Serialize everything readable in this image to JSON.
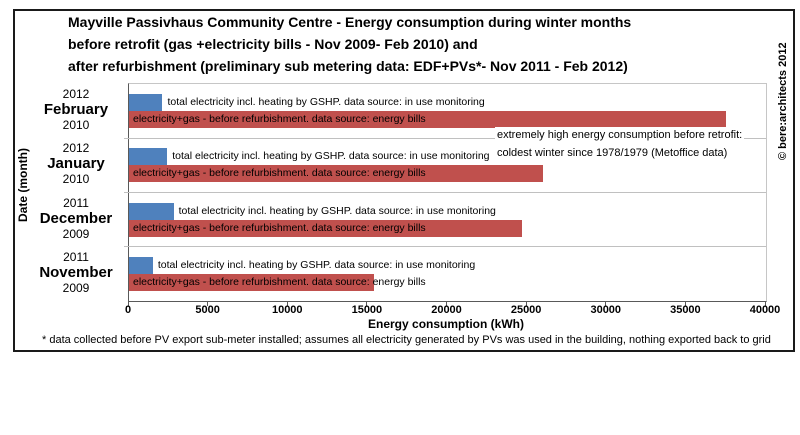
{
  "page": {
    "title_lines": [
      "Mayville Passivhaus Community Centre - Energy consumption during winter months",
      "before retrofit (gas +electricity bills - Nov 2009- Feb 2010) and",
      "after refurbishment (preliminary sub metering data: EDF+PVs*- Nov 2011 - Feb 2012)"
    ],
    "copyright": "© bere:architects 2012",
    "footnote": "* data collected before PV export sub-meter installed; assumes all electricity generated by PVs was used in the building, nothing exported back to grid"
  },
  "chart_data": {
    "type": "bar",
    "orientation": "horizontal",
    "xlabel": "Energy consumption (kWh)",
    "ylabel": "Date (month)",
    "xlim": [
      0,
      40000
    ],
    "xticks": [
      0,
      5000,
      10000,
      15000,
      20000,
      25000,
      30000,
      35000,
      40000
    ],
    "grid": false,
    "categories": [
      {
        "lines": [
          "2012",
          "February",
          "2010"
        ]
      },
      {
        "lines": [
          "2012",
          "January",
          "2010"
        ]
      },
      {
        "lines": [
          "2011",
          "December",
          "2009"
        ]
      },
      {
        "lines": [
          "2011",
          "November",
          "2009"
        ]
      }
    ],
    "series": [
      {
        "name": "after-retrofit",
        "label": "total electricity incl. heating by GSHP.  data source: in use monitoring",
        "color": "#4f81bd",
        "values": [
          2100,
          2400,
          2800,
          1500
        ]
      },
      {
        "name": "before-retrofit",
        "label": "electricity+gas - before refurbishment. data source: energy bills",
        "color": "#c0504d",
        "values": [
          37500,
          26000,
          24700,
          15400
        ]
      }
    ],
    "annotation": [
      "extremely high energy consumption before retrofit:",
      "coldest winter since 1978/1979 (Metoffice data)"
    ]
  }
}
